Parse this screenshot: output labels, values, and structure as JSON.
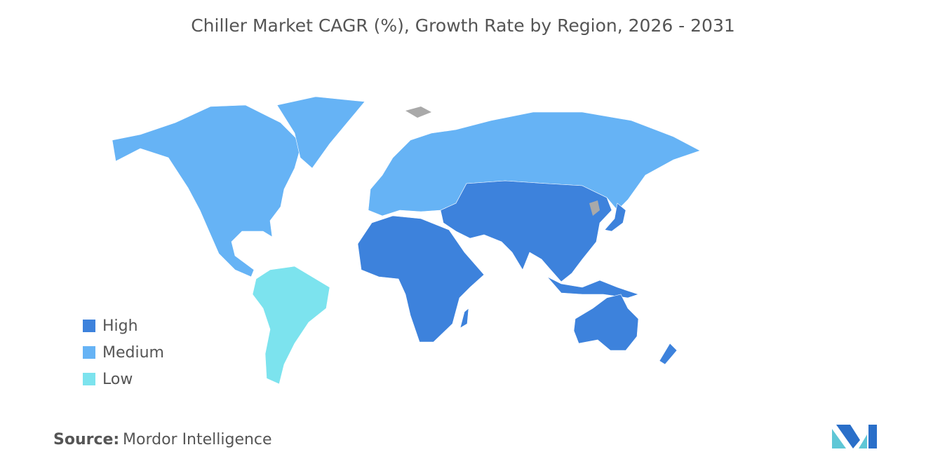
{
  "title": "Chiller Market CAGR (%), Growth Rate by Region, 2026 - 2031",
  "legend": [
    {
      "label": "High",
      "color": "#3d82dc"
    },
    {
      "label": "Medium",
      "color": "#66b3f5"
    },
    {
      "label": "Low",
      "color": "#7ce3ee"
    }
  ],
  "source": {
    "label": "Source:",
    "text": "Mordor Intelligence"
  }
}
